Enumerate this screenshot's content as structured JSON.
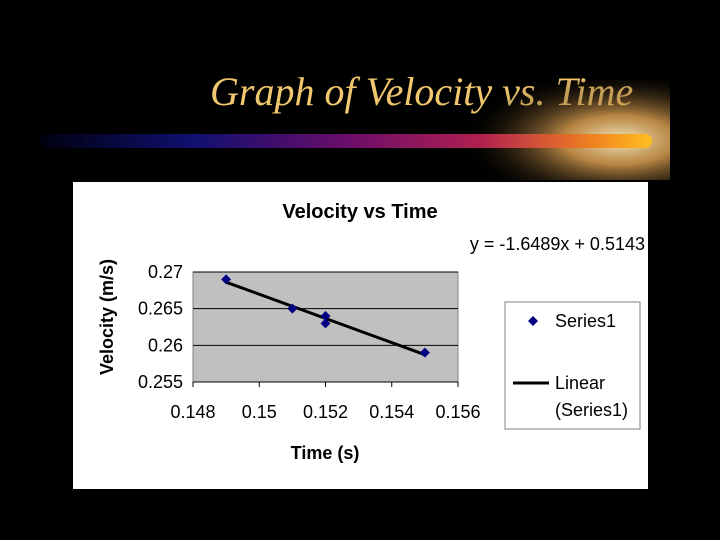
{
  "slide": {
    "title": "Graph of Velocity vs. Time"
  },
  "chart_data": {
    "type": "scatter",
    "title": "Velocity vs Time",
    "xlabel": "Time (s)",
    "ylabel": "Velocity (m/s)",
    "xlim": [
      0.148,
      0.156
    ],
    "ylim": [
      0.255,
      0.27
    ],
    "xticks": [
      0.148,
      0.15,
      0.152,
      0.154,
      0.156
    ],
    "yticks": [
      0.255,
      0.26,
      0.265,
      0.27
    ],
    "xtick_labels": [
      "0.148",
      "0.15",
      "0.152",
      "0.154",
      "0.156"
    ],
    "ytick_labels": [
      "0.255",
      "0.26",
      "0.265",
      "0.27"
    ],
    "grid": "horizontal",
    "legend_position": "right",
    "series": [
      {
        "name": "Series1",
        "marker": "diamond",
        "color": "#000080",
        "x": [
          0.149,
          0.151,
          0.152,
          0.152,
          0.155
        ],
        "y": [
          0.269,
          0.265,
          0.264,
          0.263,
          0.259
        ]
      }
    ],
    "trendline": {
      "legend_label_line1": "Linear",
      "legend_label_line2": "(Series1)",
      "slope": -1.6489,
      "intercept": 0.5143,
      "x_range": [
        0.149,
        0.155
      ],
      "equation": "y = -1.6489x + 0.5143",
      "color": "#000000"
    },
    "plot_background": "#c0c0c0"
  }
}
